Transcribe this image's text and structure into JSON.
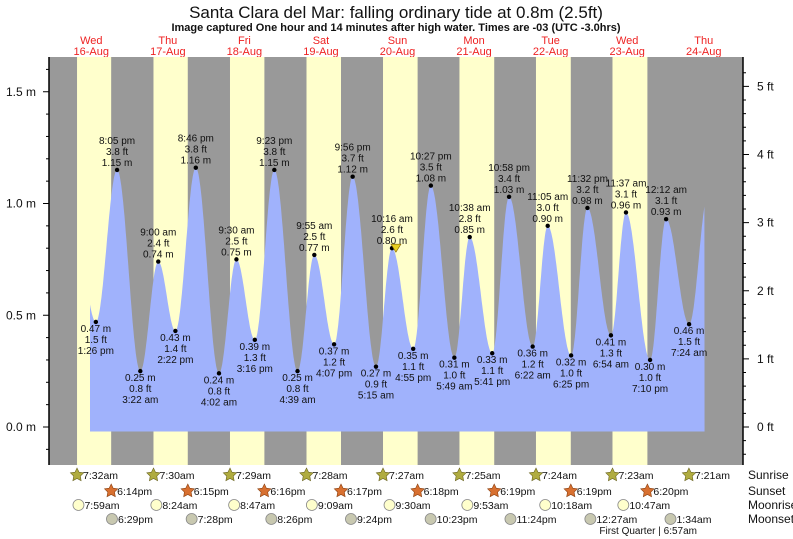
{
  "chart_data": {
    "type": "area",
    "title": "Santa Clara del Mar: falling  ordinary tide at 0.8m (2.5ft)",
    "subtitle": "Image captured One hour and 14 minutes after high water. Times are -03 (UTC -3.0hrs)",
    "days": [
      {
        "dow": "Wed",
        "date": "16-Aug"
      },
      {
        "dow": "Thu",
        "date": "17-Aug"
      },
      {
        "dow": "Fri",
        "date": "18-Aug"
      },
      {
        "dow": "Sat",
        "date": "19-Aug"
      },
      {
        "dow": "Sun",
        "date": "20-Aug"
      },
      {
        "dow": "Mon",
        "date": "21-Aug"
      },
      {
        "dow": "Tue",
        "date": "22-Aug"
      },
      {
        "dow": "Wed",
        "date": "23-Aug"
      },
      {
        "dow": "Thu",
        "date": "24-Aug"
      }
    ],
    "left_axis": {
      "unit": "m",
      "ticks": [
        "0.0 m",
        "0.5 m",
        "1.0 m",
        "1.5 m"
      ],
      "values": [
        0,
        0.5,
        1.0,
        1.5
      ]
    },
    "right_axis": {
      "unit": "ft",
      "ticks": [
        "0 ft",
        "1 ft",
        "2 ft",
        "3 ft",
        "4 ft",
        "5 ft"
      ],
      "values": [
        0,
        1,
        2,
        3,
        4,
        5
      ]
    },
    "ylim_m": [
      -0.3,
      1.65
    ],
    "colors": {
      "night": "#999999",
      "day": "#ffffcc",
      "water": "#a0b2fc",
      "day_label": "#ee2222"
    },
    "extremes": [
      {
        "type": "low",
        "day": 0,
        "time": "1:26 pm",
        "ft": "1.5 ft",
        "m": "0.47 m",
        "value": 0.47
      },
      {
        "type": "high",
        "day": 0,
        "time": "8:05 pm",
        "ft": "3.8 ft",
        "m": "1.15 m",
        "value": 1.15
      },
      {
        "type": "low",
        "day": 1,
        "time": "3:22 am",
        "ft": "0.8 ft",
        "m": "0.25 m",
        "value": 0.25
      },
      {
        "type": "high",
        "day": 1,
        "time": "9:00 am",
        "ft": "2.4 ft",
        "m": "0.74 m",
        "value": 0.74
      },
      {
        "type": "low",
        "day": 1,
        "time": "2:22 pm",
        "ft": "1.4 ft",
        "m": "0.43 m",
        "value": 0.43
      },
      {
        "type": "high",
        "day": 1,
        "time": "8:46 pm",
        "ft": "3.8 ft",
        "m": "1.16 m",
        "value": 1.16
      },
      {
        "type": "low",
        "day": 2,
        "time": "4:02 am",
        "ft": "0.8 ft",
        "m": "0.24 m",
        "value": 0.24
      },
      {
        "type": "high",
        "day": 2,
        "time": "9:30 am",
        "ft": "2.5 ft",
        "m": "0.75 m",
        "value": 0.75
      },
      {
        "type": "low",
        "day": 2,
        "time": "3:16 pm",
        "ft": "1.3 ft",
        "m": "0.39 m",
        "value": 0.39
      },
      {
        "type": "high",
        "day": 2,
        "time": "9:23 pm",
        "ft": "3.8 ft",
        "m": "1.15 m",
        "value": 1.15
      },
      {
        "type": "low",
        "day": 3,
        "time": "4:39 am",
        "ft": "0.8 ft",
        "m": "0.25 m",
        "value": 0.25
      },
      {
        "type": "high",
        "day": 3,
        "time": "9:55 am",
        "ft": "2.5 ft",
        "m": "0.77 m",
        "value": 0.77
      },
      {
        "type": "low",
        "day": 3,
        "time": "4:07 pm",
        "ft": "1.2 ft",
        "m": "0.37 m",
        "value": 0.37
      },
      {
        "type": "high",
        "day": 3,
        "time": "9:56 pm",
        "ft": "3.7 ft",
        "m": "1.12 m",
        "value": 1.12
      },
      {
        "type": "low",
        "day": 4,
        "time": "5:15 am",
        "ft": "0.9 ft",
        "m": "0.27 m",
        "value": 0.27
      },
      {
        "type": "high",
        "day": 4,
        "time": "10:16 am",
        "ft": "2.6 ft",
        "m": "0.80 m",
        "value": 0.8
      },
      {
        "type": "low",
        "day": 4,
        "time": "4:55 pm",
        "ft": "1.1 ft",
        "m": "0.35 m",
        "value": 0.35
      },
      {
        "type": "high",
        "day": 4,
        "time": "10:27 pm",
        "ft": "3.5 ft",
        "m": "1.08 m",
        "value": 1.08
      },
      {
        "type": "low",
        "day": 5,
        "time": "5:49 am",
        "ft": "1.0 ft",
        "m": "0.31 m",
        "value": 0.31
      },
      {
        "type": "high",
        "day": 5,
        "time": "10:38 am",
        "ft": "2.8 ft",
        "m": "0.85 m",
        "value": 0.85
      },
      {
        "type": "low",
        "day": 5,
        "time": "5:41 pm",
        "ft": "1.1 ft",
        "m": "0.33 m",
        "value": 0.33
      },
      {
        "type": "high",
        "day": 5,
        "time": "10:58 pm",
        "ft": "3.4 ft",
        "m": "1.03 m",
        "value": 1.03
      },
      {
        "type": "low",
        "day": 6,
        "time": "6:22 am",
        "ft": "1.2 ft",
        "m": "0.36 m",
        "value": 0.36
      },
      {
        "type": "high",
        "day": 6,
        "time": "11:05 am",
        "ft": "3.0 ft",
        "m": "0.90 m",
        "value": 0.9
      },
      {
        "type": "low",
        "day": 6,
        "time": "6:25 pm",
        "ft": "1.0 ft",
        "m": "0.32 m",
        "value": 0.32
      },
      {
        "type": "high",
        "day": 6,
        "time": "11:32 pm",
        "ft": "3.2 ft",
        "m": "0.98 m",
        "value": 0.98
      },
      {
        "type": "low",
        "day": 7,
        "time": "6:54 am",
        "ft": "1.3 ft",
        "m": "0.41 m",
        "value": 0.41
      },
      {
        "type": "high",
        "day": 7,
        "time": "11:37 am",
        "ft": "3.1 ft",
        "m": "0.96 m",
        "value": 0.96
      },
      {
        "type": "low",
        "day": 7,
        "time": "7:10 pm",
        "ft": "1.0 ft",
        "m": "0.30 m",
        "value": 0.3
      },
      {
        "type": "high",
        "day": 8,
        "time": "12:12 am",
        "ft": "3.1 ft",
        "m": "0.93 m",
        "value": 0.93
      },
      {
        "type": "low",
        "day": 8,
        "time": "7:24 am",
        "ft": "1.5 ft",
        "m": "0.46 m",
        "value": 0.46
      }
    ],
    "current": {
      "day": 4,
      "time": "11:30 am",
      "value": 0.8
    }
  },
  "astro": {
    "row_labels": {
      "sunrise": "Sunrise",
      "sunset": "Sunset",
      "moonrise": "Moonrise",
      "moonset": "Moonset"
    },
    "sunrise": [
      {
        "day": 0,
        "time": "7:32am"
      },
      {
        "day": 1,
        "time": "7:30am"
      },
      {
        "day": 2,
        "time": "7:29am"
      },
      {
        "day": 3,
        "time": "7:28am"
      },
      {
        "day": 4,
        "time": "7:27am"
      },
      {
        "day": 5,
        "time": "7:25am"
      },
      {
        "day": 6,
        "time": "7:24am"
      },
      {
        "day": 7,
        "time": "7:23am"
      },
      {
        "day": 8,
        "time": "7:21am"
      }
    ],
    "sunset": [
      {
        "day": 0,
        "time": "6:14pm"
      },
      {
        "day": 1,
        "time": "6:15pm"
      },
      {
        "day": 2,
        "time": "6:16pm"
      },
      {
        "day": 3,
        "time": "6:17pm"
      },
      {
        "day": 4,
        "time": "6:18pm"
      },
      {
        "day": 5,
        "time": "6:19pm"
      },
      {
        "day": 6,
        "time": "6:19pm"
      },
      {
        "day": 7,
        "time": "6:20pm"
      }
    ],
    "moonrise": [
      {
        "day": 0,
        "time": "7:59am"
      },
      {
        "day": 1,
        "time": "8:24am"
      },
      {
        "day": 2,
        "time": "8:47am"
      },
      {
        "day": 3,
        "time": "9:09am"
      },
      {
        "day": 4,
        "time": "9:30am"
      },
      {
        "day": 5,
        "time": "9:53am"
      },
      {
        "day": 6,
        "time": "10:18am"
      },
      {
        "day": 7,
        "time": "10:47am"
      }
    ],
    "moonset": [
      {
        "day": 0,
        "time": "6:29pm"
      },
      {
        "day": 1,
        "time": "7:28pm"
      },
      {
        "day": 2,
        "time": "8:26pm"
      },
      {
        "day": 3,
        "time": "9:24pm"
      },
      {
        "day": 4,
        "time": "10:23pm"
      },
      {
        "day": 5,
        "time": "11:24pm"
      },
      {
        "day": 7,
        "time": "12:27am"
      },
      {
        "day": 8,
        "time": "1:34am"
      }
    ],
    "moon_phase": {
      "label": "First Quarter",
      "time": "6:57am"
    }
  }
}
